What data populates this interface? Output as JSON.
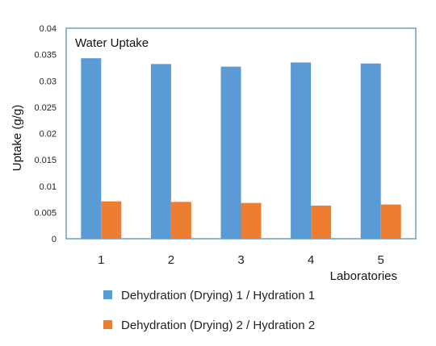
{
  "chart_data": {
    "type": "bar",
    "title": "Water Uptake",
    "xlabel": "Laboratories",
    "ylabel": "Uptake (g/g)",
    "categories": [
      "1",
      "2",
      "3",
      "4",
      "5"
    ],
    "series": [
      {
        "name": "Dehydration (Drying) 1 / Hydration 1",
        "color": "#5b9bd5",
        "values": [
          0.0343,
          0.0332,
          0.0327,
          0.0335,
          0.0333
        ]
      },
      {
        "name": "Dehydration (Drying) 2 / Hydration 2",
        "color": "#ed7d31",
        "values": [
          0.0071,
          0.007,
          0.0068,
          0.0063,
          0.0065
        ]
      }
    ],
    "ylim": [
      0,
      0.04
    ],
    "yticks": [
      "0",
      "0.005",
      "0.01",
      "0.015",
      "0.02",
      "0.025",
      "0.03",
      "0.035",
      "0.04"
    ],
    "grid": false,
    "legend": "bottom",
    "frame_color": "#6a9fcf"
  }
}
